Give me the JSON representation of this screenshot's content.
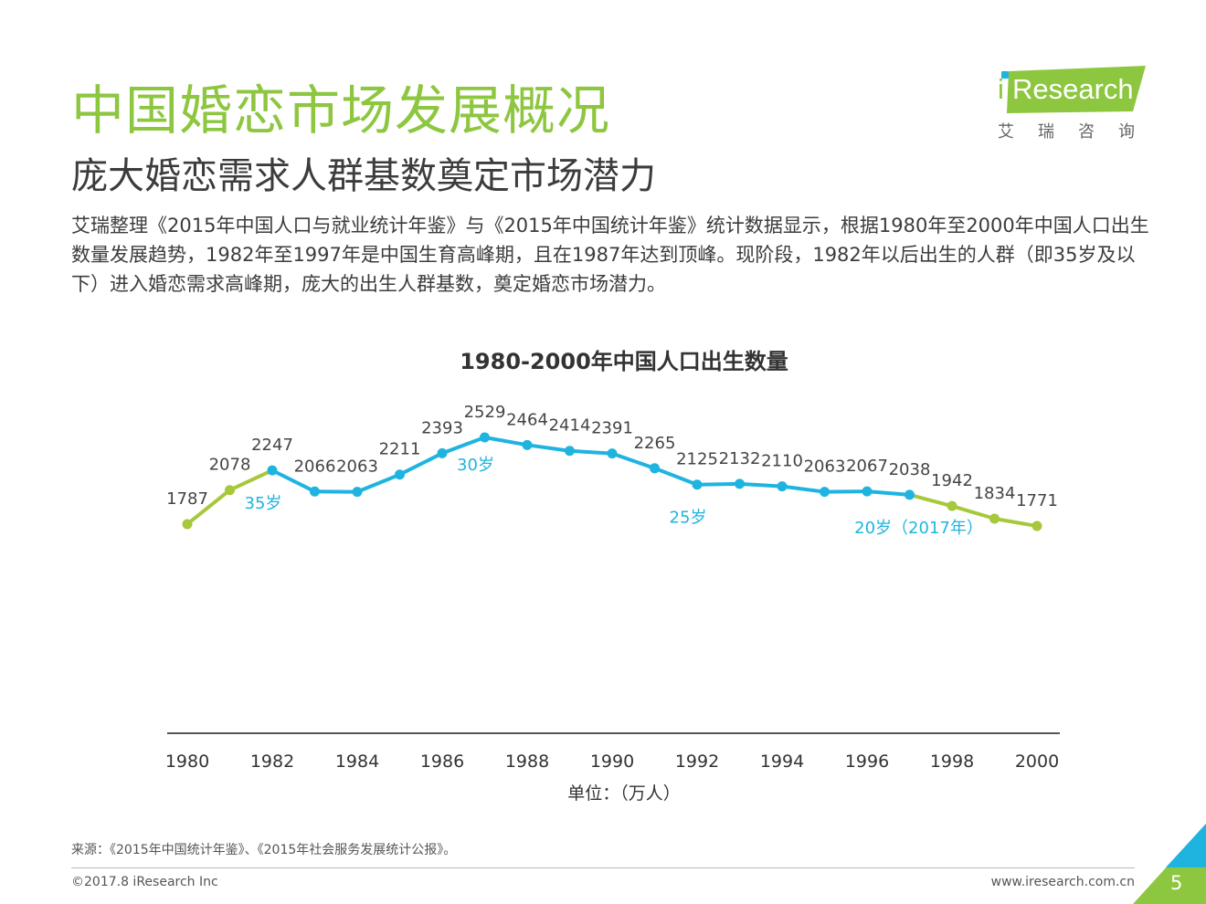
{
  "header": {
    "title": "中国婚恋市场发展概况",
    "subtitle": "庞大婚恋需求人群基数奠定市场潜力",
    "intro": "艾瑞整理《2015年中国人口与就业统计年鉴》与《2015年中国统计年鉴》统计数据显示，根据1980年至2000年中国人口出生数量发展趋势，1982年至1997年是中国生育高峰期，且在1987年达到顶峰。现阶段，1982年以后出生的人群（即35岁及以下）进入婚恋需求高峰期，庞大的出生人群基数，奠定婚恋市场潜力。"
  },
  "logo": {
    "i": "i",
    "text": "Research",
    "cn": "艾瑞咨询"
  },
  "chart_data": {
    "type": "line",
    "title": "1980-2000年中国人口出生数量",
    "unit_label": "单位：（万人）",
    "x": [
      1980,
      1981,
      1982,
      1983,
      1984,
      1985,
      1986,
      1987,
      1988,
      1989,
      1990,
      1991,
      1992,
      1993,
      1994,
      1995,
      1996,
      1997,
      1998,
      1999,
      2000
    ],
    "values": [
      1787,
      2078,
      2247,
      2066,
      2063,
      2211,
      2393,
      2529,
      2464,
      2414,
      2391,
      2265,
      2125,
      2132,
      2110,
      2063,
      2067,
      2038,
      1942,
      1834,
      1771
    ],
    "x_tick_labels": [
      "1980",
      "1982",
      "1984",
      "1986",
      "1988",
      "1990",
      "1992",
      "1994",
      "1996",
      "1998",
      "2000"
    ],
    "highlight_segments": [
      {
        "from": 1980,
        "to": 1982,
        "color": "#a6c83b"
      },
      {
        "from": 1982,
        "to": 1997,
        "color": "#1fb4e0"
      },
      {
        "from": 1997,
        "to": 2000,
        "color": "#a6c83b"
      }
    ],
    "annotations": [
      {
        "year": 1982,
        "text": "35岁"
      },
      {
        "year": 1987,
        "text": "30岁"
      },
      {
        "year": 1992,
        "text": "25岁"
      },
      {
        "year": 1997,
        "text": "20岁（2017年）"
      }
    ],
    "annotation_color": "#1fb4e0",
    "grid": false,
    "legend": "none"
  },
  "footer": {
    "source": "来源：《2015年中国统计年鉴》、《2015年社会服务发展统计公报》。",
    "copyright": "©2017.8 iResearch Inc",
    "site": "www.iresearch.com.cn",
    "page": "5"
  },
  "colors": {
    "title_green": "#8dc63f",
    "line_blue": "#1fb4e0",
    "line_green": "#a6c83b"
  }
}
